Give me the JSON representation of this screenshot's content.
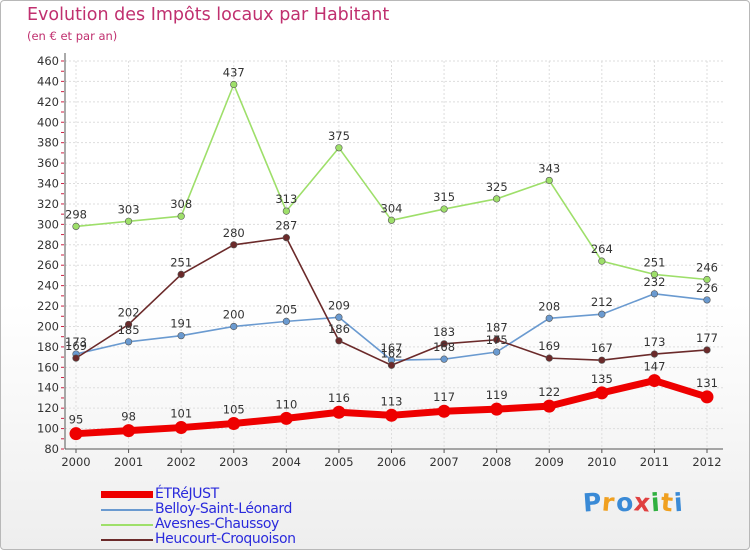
{
  "chart_data": {
    "type": "line",
    "title": "Evolution des Impôts locaux par Habitant",
    "subtitle": "(en € et par an)",
    "categories": [
      "2000",
      "2001",
      "2002",
      "2003",
      "2004",
      "2005",
      "2006",
      "2007",
      "2008",
      "2009",
      "2010",
      "2011",
      "2012"
    ],
    "ylim": [
      80,
      460
    ],
    "yticks": [
      80,
      100,
      120,
      140,
      160,
      180,
      200,
      220,
      240,
      260,
      280,
      300,
      320,
      340,
      360,
      380,
      400,
      420,
      440,
      460
    ],
    "grid": true,
    "legend_position": "bottom-left",
    "series": [
      {
        "name": "ÉTRéJUST",
        "color": "#ee0000",
        "emphasis": true,
        "values": [
          95,
          98,
          101,
          105,
          110,
          116,
          113,
          117,
          119,
          122,
          135,
          147,
          131
        ]
      },
      {
        "name": "Belloy-Saint-Léonard",
        "color": "#6a9ad0",
        "values": [
          173,
          185,
          191,
          200,
          205,
          209,
          167,
          168,
          175,
          208,
          212,
          232,
          226
        ]
      },
      {
        "name": "Avesnes-Chaussoy",
        "color": "#9edf6a",
        "values": [
          298,
          303,
          308,
          437,
          313,
          375,
          304,
          315,
          325,
          343,
          264,
          251,
          246
        ]
      },
      {
        "name": "Heucourt-Croquoison",
        "color": "#6b2a2a",
        "values": [
          169,
          202,
          251,
          280,
          287,
          186,
          162,
          183,
          187,
          169,
          167,
          173,
          177
        ]
      }
    ]
  },
  "logo": {
    "letters": [
      "P",
      "r",
      "o",
      "x",
      "i",
      "t",
      "i"
    ],
    "colors": [
      "#3a8ad6",
      "#f0a020",
      "#3a8ad6",
      "#e04040",
      "#30b040",
      "#f0a020",
      "#3a8ad6"
    ]
  }
}
